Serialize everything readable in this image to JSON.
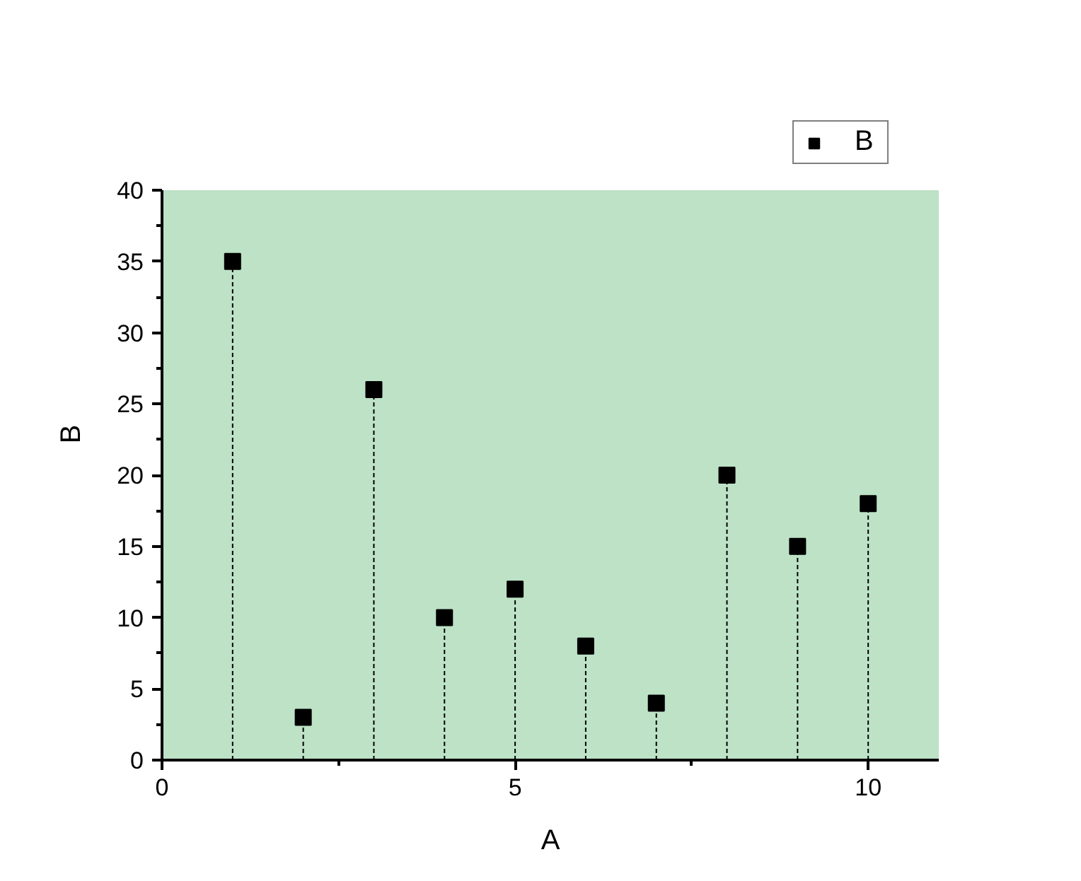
{
  "chart_data": {
    "type": "lollipop",
    "xlabel": "A",
    "ylabel": "B",
    "x": [
      1,
      2,
      3,
      4,
      5,
      6,
      7,
      8,
      9,
      10
    ],
    "series": [
      {
        "name": "B",
        "color": "#000000",
        "values": [
          35,
          3,
          26,
          10,
          12,
          8,
          4,
          20,
          15,
          18
        ]
      }
    ],
    "xlim": [
      0,
      11
    ],
    "ylim": [
      0,
      40
    ],
    "xticks": [
      0,
      {
        "value": 2.5,
        "label": null
      },
      5,
      {
        "value": 7.5,
        "label": null
      },
      10
    ],
    "yticks": [
      0,
      {
        "value": 2.5,
        "label": null
      },
      5,
      {
        "value": 7.5,
        "label": null
      },
      10,
      {
        "value": 12.5,
        "label": null
      },
      15,
      {
        "value": 17.5,
        "label": null
      },
      20,
      {
        "value": 22.5,
        "label": null
      },
      25,
      {
        "value": 27.5,
        "label": null
      },
      30,
      {
        "value": 32.5,
        "label": null
      },
      35,
      {
        "value": 37.5,
        "label": null
      },
      40
    ],
    "marker": "square",
    "line_style": "dashed",
    "legend": "top right",
    "grid": false
  }
}
